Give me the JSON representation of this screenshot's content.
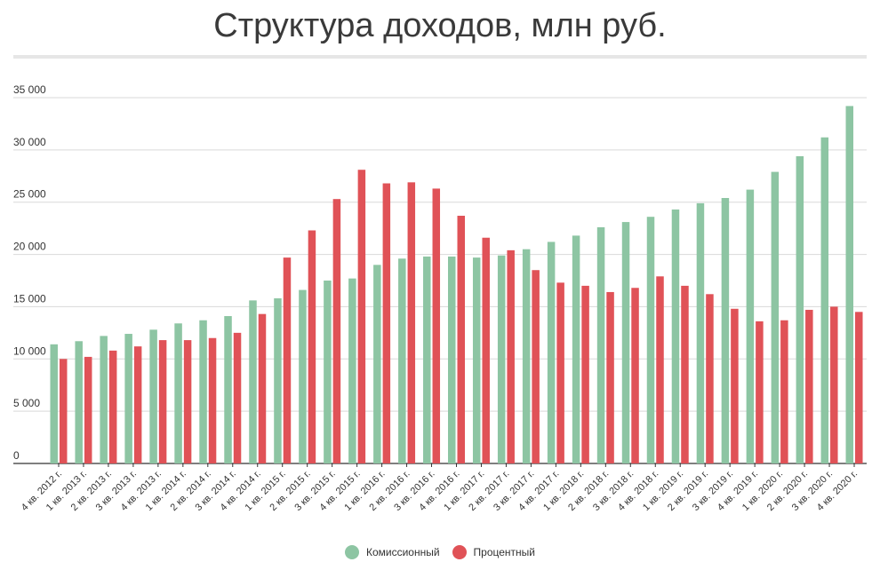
{
  "chart_data": {
    "type": "bar",
    "title": "Структура доходов, млн руб.",
    "xlabel": "",
    "ylabel": "",
    "ylim": [
      0,
      35000
    ],
    "yticks": [
      0,
      5000,
      10000,
      15000,
      20000,
      25000,
      30000,
      35000
    ],
    "ytick_labels": [
      "0",
      "5 000",
      "10 000",
      "15 000",
      "20 000",
      "25 000",
      "30 000",
      "35 000"
    ],
    "grid": true,
    "legend_position": "bottom-center",
    "categories": [
      "4 кв. 2012 г.",
      "1 кв. 2013 г.",
      "2 кв. 2013 г.",
      "3 кв. 2013 г.",
      "4 кв. 2013 г.",
      "1 кв. 2014 г.",
      "2 кв. 2014 г.",
      "3 кв. 2014 г.",
      "4 кв. 2014 г.",
      "1 кв. 2015 г.",
      "2 кв. 2015 г.",
      "3 кв. 2015 г.",
      "4 кв. 2015 г.",
      "1 кв. 2016 г.",
      "2 кв. 2016 г.",
      "3 кв. 2016 г.",
      "4 кв. 2016 г.",
      "1 кв. 2017 г.",
      "2 кв. 2017 г.",
      "3 кв. 2017 г.",
      "4 кв. 2017 г.",
      "1 кв. 2018 г.",
      "2 кв. 2018 г.",
      "3 кв. 2018 г.",
      "4 кв. 2018 г.",
      "1 кв. 2019 г.",
      "2 кв. 2019 г.",
      "3 кв. 2019 г.",
      "4 кв. 2019 г.",
      "1 кв. 2020 г.",
      "2 кв. 2020 г.",
      "3 кв. 2020 г.",
      "4 кв. 2020 г."
    ],
    "series": [
      {
        "name": "Комиссионный",
        "color": "#8dc5a3",
        "values": [
          11400,
          11700,
          12200,
          12400,
          12800,
          13400,
          13700,
          14100,
          15600,
          15800,
          16600,
          17500,
          17700,
          19000,
          19600,
          19800,
          19800,
          19700,
          19900,
          20500,
          21200,
          21800,
          22600,
          23100,
          23600,
          24300,
          24900,
          25400,
          26200,
          27900,
          29400,
          31200,
          34200
        ]
      },
      {
        "name": "Процентный",
        "color": "#e05257",
        "values": [
          10000,
          10200,
          10800,
          11200,
          11800,
          11800,
          12000,
          12500,
          14300,
          19700,
          22300,
          25300,
          28100,
          26800,
          26900,
          26300,
          23700,
          21600,
          20400,
          18500,
          17300,
          17000,
          16400,
          16800,
          17900,
          17000,
          16200,
          14800,
          13600,
          13700,
          14700,
          15000,
          14500
        ]
      }
    ]
  }
}
